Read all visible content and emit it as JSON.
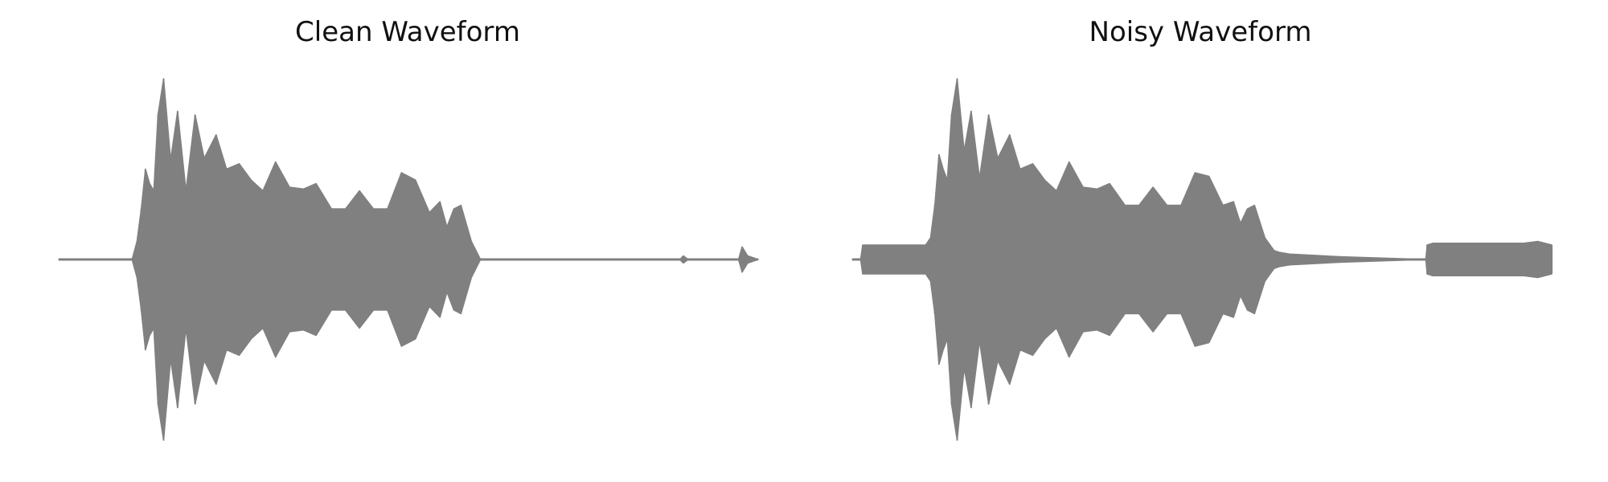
{
  "chart_data": [
    {
      "type": "line",
      "title": "Clean Waveform",
      "xlabel": "",
      "ylabel": "",
      "axes_visible": false,
      "grid": false,
      "ylim": [
        -1,
        1
      ],
      "xlim": [
        0,
        1
      ],
      "color": "#808080",
      "series": [
        {
          "x": [
            0.0,
            0.105,
            0.112,
            0.118,
            0.124,
            0.13,
            0.136,
            0.142,
            0.15,
            0.16,
            0.17,
            0.182,
            0.195,
            0.208,
            0.225,
            0.24,
            0.258,
            0.275,
            0.292,
            0.31,
            0.33,
            0.35,
            0.368,
            0.39,
            0.41,
            0.43,
            0.45,
            0.47,
            0.49,
            0.51,
            0.53,
            0.545,
            0.555,
            0.565,
            0.575,
            0.59,
            0.603,
            0.61,
            0.625,
            0.65,
            0.7,
            0.8,
            0.888,
            0.893,
            0.9,
            0.96,
            0.972,
            0.977,
            0.985,
            1.0
          ],
          "upper": [
            0.0,
            0.0,
            0.1,
            0.28,
            0.5,
            0.42,
            0.38,
            0.8,
            1.0,
            0.55,
            0.82,
            0.38,
            0.8,
            0.56,
            0.69,
            0.5,
            0.53,
            0.44,
            0.38,
            0.54,
            0.4,
            0.39,
            0.42,
            0.28,
            0.28,
            0.38,
            0.28,
            0.28,
            0.48,
            0.44,
            0.26,
            0.32,
            0.18,
            0.28,
            0.3,
            0.1,
            0.0,
            0.0,
            0.0,
            0.0,
            0.0,
            0.0,
            0.0,
            0.02,
            0.0,
            0.0,
            0.0,
            0.07,
            0.02,
            0.0
          ],
          "lower": [
            0.0,
            0.0,
            -0.1,
            -0.28,
            -0.5,
            -0.42,
            -0.38,
            -0.8,
            -1.0,
            -0.55,
            -0.82,
            -0.38,
            -0.8,
            -0.56,
            -0.69,
            -0.5,
            -0.53,
            -0.44,
            -0.38,
            -0.54,
            -0.4,
            -0.39,
            -0.42,
            -0.28,
            -0.28,
            -0.38,
            -0.28,
            -0.28,
            -0.48,
            -0.44,
            -0.26,
            -0.32,
            -0.18,
            -0.28,
            -0.3,
            -0.1,
            0.0,
            0.0,
            0.0,
            0.0,
            0.0,
            0.0,
            0.0,
            -0.02,
            0.0,
            0.0,
            0.0,
            -0.07,
            -0.02,
            0.0
          ]
        }
      ]
    },
    {
      "type": "line",
      "title": "Noisy Waveform",
      "xlabel": "",
      "ylabel": "",
      "axes_visible": false,
      "grid": false,
      "ylim": [
        -1,
        1
      ],
      "xlim": [
        0,
        1
      ],
      "color": "#808080",
      "series": [
        {
          "x": [
            0.0,
            0.012,
            0.015,
            0.1,
            0.105,
            0.112,
            0.118,
            0.124,
            0.13,
            0.136,
            0.142,
            0.15,
            0.16,
            0.17,
            0.182,
            0.195,
            0.208,
            0.225,
            0.24,
            0.258,
            0.275,
            0.292,
            0.31,
            0.33,
            0.35,
            0.368,
            0.39,
            0.41,
            0.43,
            0.45,
            0.47,
            0.49,
            0.51,
            0.53,
            0.545,
            0.555,
            0.565,
            0.575,
            0.59,
            0.603,
            0.61,
            0.625,
            0.65,
            0.7,
            0.78,
            0.82,
            0.822,
            0.83,
            0.96,
            0.98,
            1.0
          ],
          "upper": [
            0.0,
            0.0,
            0.08,
            0.08,
            0.08,
            0.12,
            0.3,
            0.58,
            0.5,
            0.44,
            0.8,
            1.0,
            0.6,
            0.82,
            0.45,
            0.8,
            0.56,
            0.69,
            0.5,
            0.53,
            0.44,
            0.38,
            0.54,
            0.4,
            0.39,
            0.42,
            0.3,
            0.3,
            0.4,
            0.3,
            0.3,
            0.48,
            0.46,
            0.3,
            0.32,
            0.2,
            0.28,
            0.3,
            0.12,
            0.05,
            0.04,
            0.03,
            0.025,
            0.015,
            0.005,
            0.0,
            0.08,
            0.09,
            0.09,
            0.1,
            0.08
          ],
          "lower": [
            0.0,
            0.0,
            -0.08,
            -0.08,
            -0.08,
            -0.12,
            -0.3,
            -0.58,
            -0.5,
            -0.44,
            -0.8,
            -1.0,
            -0.6,
            -0.82,
            -0.45,
            -0.8,
            -0.56,
            -0.69,
            -0.5,
            -0.53,
            -0.44,
            -0.38,
            -0.54,
            -0.4,
            -0.39,
            -0.42,
            -0.3,
            -0.3,
            -0.4,
            -0.3,
            -0.3,
            -0.48,
            -0.46,
            -0.3,
            -0.32,
            -0.2,
            -0.28,
            -0.3,
            -0.12,
            -0.05,
            -0.04,
            -0.03,
            -0.025,
            -0.015,
            -0.005,
            0.0,
            -0.08,
            -0.09,
            -0.09,
            -0.1,
            -0.08
          ]
        }
      ]
    }
  ]
}
